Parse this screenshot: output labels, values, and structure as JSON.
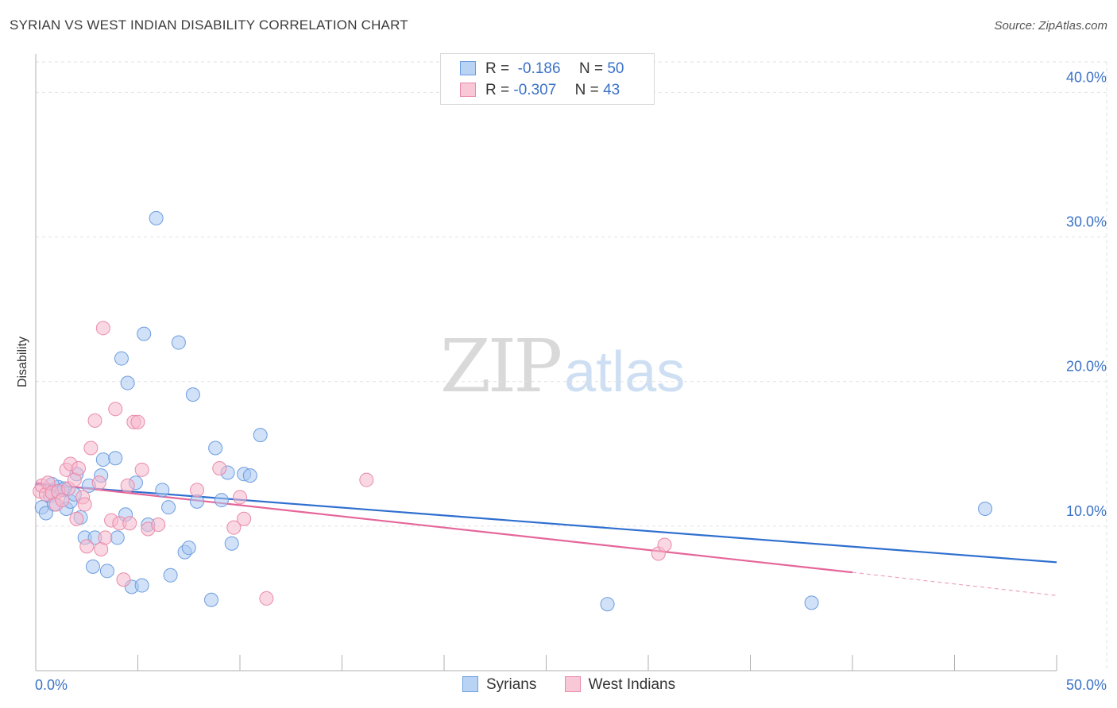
{
  "header": {
    "title": "SYRIAN VS WEST INDIAN DISABILITY CORRELATION CHART",
    "source": "Source: ZipAtlas.com"
  },
  "watermark": {
    "zip": "ZIP",
    "atlas": "atlas"
  },
  "legend": {
    "rows": [
      {
        "r_label": "R =",
        "r_value": "-0.186",
        "n_label": "N =",
        "n_value": "50"
      },
      {
        "r_label": "R =",
        "r_value": "-0.307",
        "n_label": "N =",
        "n_value": "43"
      }
    ]
  },
  "bottom_legend": {
    "series1": "Syrians",
    "series2": "West Indians"
  },
  "colors": {
    "blue_fill": "#a9c9f2",
    "blue_stroke": "#6d9de0",
    "blue_line": "#2f6fcf",
    "pink_fill": "#f5b8cc",
    "pink_stroke": "#e98aa9",
    "pink_line": "#e5669a",
    "tick_text": "#3a72c8",
    "grid": "#e2e2e2"
  },
  "chart_data": {
    "type": "scatter",
    "title": "SYRIAN VS WEST INDIAN DISABILITY CORRELATION CHART",
    "xlabel": "",
    "ylabel": "Disability",
    "xlim": [
      0,
      50
    ],
    "ylim": [
      0,
      42
    ],
    "x_tick_labels": [
      "0.0%",
      "50.0%"
    ],
    "y_ticks": [
      10,
      20,
      30,
      40
    ],
    "y_tick_labels": [
      "10.0%",
      "20.0%",
      "30.0%",
      "40.0%"
    ],
    "grid": true,
    "legend_position": "top-center",
    "series": [
      {
        "name": "Syrians",
        "color": "#6d9de0",
        "trend": {
          "x": [
            0,
            50
          ],
          "y": [
            12.9,
            7.5
          ]
        },
        "points": [
          [
            0.3,
            11.3
          ],
          [
            0.5,
            10.9
          ],
          [
            0.7,
            12.1
          ],
          [
            0.9,
            11.5
          ],
          [
            1.1,
            12.7
          ],
          [
            1.3,
            12.5
          ],
          [
            1.5,
            11.2
          ],
          [
            1.7,
            11.7
          ],
          [
            1.9,
            12.2
          ],
          [
            2.0,
            13.6
          ],
          [
            2.2,
            10.6
          ],
          [
            2.4,
            9.2
          ],
          [
            2.6,
            12.8
          ],
          [
            2.8,
            7.2
          ],
          [
            2.9,
            9.2
          ],
          [
            3.2,
            13.5
          ],
          [
            3.3,
            14.6
          ],
          [
            3.5,
            6.9
          ],
          [
            3.9,
            14.7
          ],
          [
            4.0,
            9.2
          ],
          [
            4.2,
            21.6
          ],
          [
            4.4,
            10.8
          ],
          [
            4.5,
            19.9
          ],
          [
            4.7,
            5.8
          ],
          [
            4.9,
            13.0
          ],
          [
            5.2,
            5.9
          ],
          [
            5.3,
            23.3
          ],
          [
            5.5,
            10.1
          ],
          [
            5.9,
            31.3
          ],
          [
            6.2,
            12.5
          ],
          [
            6.5,
            11.3
          ],
          [
            6.6,
            6.6
          ],
          [
            7.0,
            22.7
          ],
          [
            7.3,
            8.2
          ],
          [
            7.5,
            8.5
          ],
          [
            7.7,
            19.1
          ],
          [
            7.9,
            11.7
          ],
          [
            8.6,
            4.9
          ],
          [
            8.8,
            15.4
          ],
          [
            9.4,
            13.7
          ],
          [
            9.1,
            11.8
          ],
          [
            9.6,
            8.8
          ],
          [
            10.2,
            13.6
          ],
          [
            10.5,
            13.5
          ],
          [
            11.0,
            16.3
          ],
          [
            28.0,
            4.6
          ],
          [
            38.0,
            4.7
          ],
          [
            46.5,
            11.2
          ],
          [
            0.8,
            12.9
          ],
          [
            1.4,
            12.6
          ]
        ]
      },
      {
        "name": "West Indians",
        "color": "#e98aa9",
        "trend": {
          "x": [
            0,
            40
          ],
          "y": [
            13.0,
            6.8
          ]
        },
        "trend_dashed": {
          "x": [
            40,
            50
          ],
          "y": [
            6.8,
            5.2
          ]
        },
        "points": [
          [
            0.2,
            12.4
          ],
          [
            0.3,
            12.8
          ],
          [
            0.5,
            12.2
          ],
          [
            0.6,
            13.0
          ],
          [
            0.8,
            12.3
          ],
          [
            1.0,
            11.5
          ],
          [
            1.1,
            12.4
          ],
          [
            1.3,
            11.8
          ],
          [
            1.5,
            13.9
          ],
          [
            1.6,
            12.6
          ],
          [
            1.7,
            14.3
          ],
          [
            1.9,
            13.2
          ],
          [
            2.0,
            10.5
          ],
          [
            2.1,
            14.0
          ],
          [
            2.3,
            12.0
          ],
          [
            2.4,
            11.5
          ],
          [
            2.5,
            8.6
          ],
          [
            2.7,
            15.4
          ],
          [
            2.9,
            17.3
          ],
          [
            3.1,
            13.0
          ],
          [
            3.2,
            8.4
          ],
          [
            3.3,
            23.7
          ],
          [
            3.4,
            9.2
          ],
          [
            3.7,
            10.4
          ],
          [
            3.9,
            18.1
          ],
          [
            4.1,
            10.2
          ],
          [
            4.3,
            6.3
          ],
          [
            4.5,
            12.8
          ],
          [
            4.6,
            10.2
          ],
          [
            4.8,
            17.2
          ],
          [
            5.0,
            17.2
          ],
          [
            5.2,
            13.9
          ],
          [
            5.5,
            9.8
          ],
          [
            6.0,
            10.1
          ],
          [
            7.9,
            12.5
          ],
          [
            9.0,
            14.0
          ],
          [
            9.7,
            9.9
          ],
          [
            10.0,
            12.0
          ],
          [
            10.2,
            10.5
          ],
          [
            11.3,
            5.0
          ],
          [
            16.2,
            13.2
          ],
          [
            30.5,
            8.1
          ],
          [
            30.8,
            8.7
          ]
        ]
      }
    ]
  }
}
